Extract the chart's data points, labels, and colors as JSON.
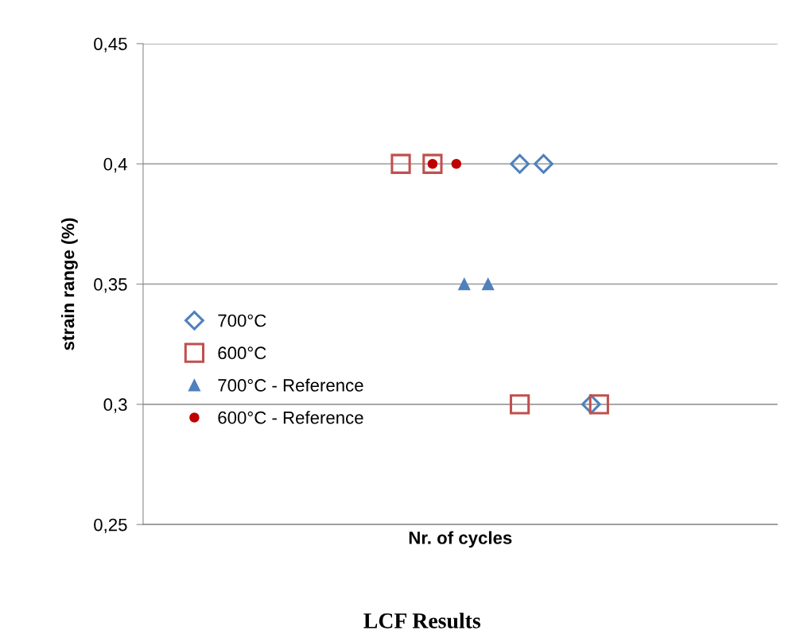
{
  "chart_data": {
    "type": "scatter",
    "xlabel": "Nr. of cycles",
    "ylabel": "strain range (%)",
    "categories": [
      null,
      null,
      null,
      null,
      null,
      null,
      null,
      null,
      null,
      null,
      null,
      null,
      null,
      null,
      null,
      null,
      null,
      null,
      null,
      null,
      null,
      null,
      null,
      null,
      null,
      null,
      null,
      null,
      null,
      null,
      null,
      null,
      null,
      null,
      null,
      null,
      null,
      null,
      null,
      null,
      null,
      null,
      null,
      null,
      null,
      null,
      null,
      null,
      null,
      null,
      null,
      null,
      null,
      null,
      null,
      null,
      null,
      null,
      null,
      null,
      null,
      null,
      null,
      null,
      null,
      null,
      null,
      null,
      null,
      null,
      null,
      null,
      null,
      null,
      null,
      null,
      null,
      null,
      null,
      null
    ],
    "series": [
      {
        "name": "700°C",
        "color": "#4f81bd",
        "marker": "diamond",
        "values": [
          null,
          null,
          null,
          null,
          null,
          null,
          null,
          null,
          null,
          null,
          null,
          null,
          null,
          null,
          null,
          null,
          null,
          null,
          null,
          null,
          null,
          null,
          null,
          null,
          null,
          null,
          null,
          null,
          null,
          null,
          null,
          null,
          null,
          null,
          null,
          null,
          null,
          null,
          null,
          null,
          null,
          null,
          null,
          null,
          null,
          null,
          null,
          0.4,
          null,
          null,
          0.4,
          null,
          null,
          null,
          null,
          null,
          0.3,
          null,
          null,
          null,
          null,
          null,
          null,
          null,
          null,
          null,
          null,
          null,
          null,
          null,
          null,
          null,
          null,
          null,
          null,
          null,
          null,
          null,
          null,
          null
        ]
      },
      {
        "name": "600°C",
        "color": "#c0504d",
        "marker": "square",
        "values": [
          null,
          null,
          null,
          null,
          null,
          null,
          null,
          null,
          null,
          null,
          null,
          null,
          null,
          null,
          null,
          null,
          null,
          null,
          null,
          null,
          null,
          null,
          null,
          null,
          null,
          null,
          null,
          null,
          null,
          null,
          null,
          null,
          0.4,
          null,
          null,
          null,
          0.4,
          null,
          null,
          null,
          null,
          null,
          null,
          null,
          null,
          null,
          null,
          0.3,
          null,
          null,
          null,
          null,
          null,
          null,
          null,
          null,
          null,
          0.3,
          null,
          null,
          null,
          null,
          null,
          null,
          null,
          null,
          null,
          null,
          null,
          null,
          null,
          null,
          null,
          null,
          null,
          null,
          null,
          null,
          null,
          null
        ]
      },
      {
        "name": "700°C - Reference",
        "color": "#4f81bd",
        "marker": "triangle",
        "values": [
          null,
          null,
          null,
          null,
          null,
          null,
          null,
          null,
          null,
          null,
          null,
          null,
          null,
          null,
          null,
          null,
          null,
          null,
          null,
          null,
          null,
          null,
          null,
          null,
          null,
          null,
          null,
          null,
          null,
          null,
          null,
          null,
          null,
          null,
          null,
          null,
          null,
          null,
          null,
          null,
          0.35,
          null,
          null,
          0.35,
          null,
          null,
          null,
          null,
          null,
          null,
          null,
          null,
          null,
          null,
          null,
          null,
          null,
          null,
          null,
          null,
          null,
          null,
          null,
          null,
          null,
          null,
          null,
          null,
          null,
          null,
          null,
          null,
          null,
          null,
          null,
          null,
          null,
          null,
          null,
          null
        ]
      },
      {
        "name": "600°C - Reference",
        "color": "#c00000",
        "marker": "circle",
        "values": [
          null,
          null,
          null,
          null,
          null,
          null,
          null,
          null,
          null,
          null,
          null,
          null,
          null,
          null,
          null,
          null,
          null,
          null,
          null,
          null,
          null,
          null,
          null,
          null,
          null,
          null,
          null,
          null,
          null,
          null,
          null,
          null,
          null,
          null,
          null,
          null,
          0.4,
          null,
          null,
          0.4,
          null,
          null,
          null,
          null,
          null,
          null,
          null,
          null,
          null,
          null,
          null,
          null,
          null,
          null,
          null,
          null,
          null,
          null,
          null,
          null,
          null,
          null,
          null,
          null,
          null,
          null,
          null,
          null,
          null,
          null,
          null,
          null,
          null,
          null,
          null,
          null,
          null,
          null,
          null,
          null
        ]
      }
    ],
    "ylim": [
      0.25,
      0.45
    ],
    "yticks": [
      {
        "value": 0.25,
        "label": "0,25"
      },
      {
        "value": 0.3,
        "label": "0,3"
      },
      {
        "value": 0.35,
        "label": "0,35"
      },
      {
        "value": 0.4,
        "label": "0,4"
      },
      {
        "value": 0.45,
        "label": "0,45"
      }
    ],
    "tick_labels": "y",
    "grid": "y",
    "legend": "left",
    "annotations": [
      "LCF Results"
    ]
  }
}
